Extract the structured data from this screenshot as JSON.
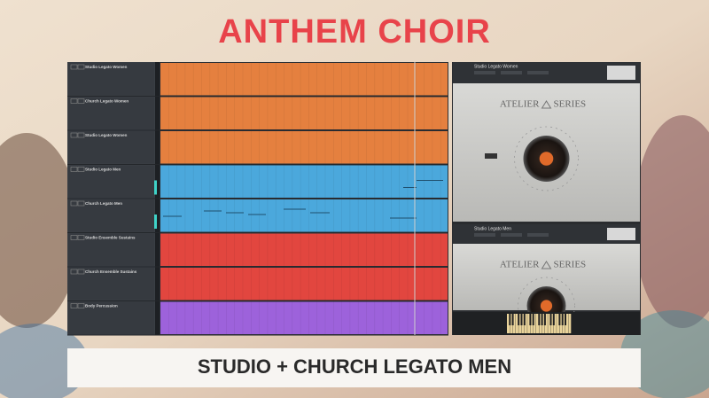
{
  "header": {
    "title": "ANTHEM CHOIR"
  },
  "tracks": [
    {
      "name": "Studio Legato Women",
      "color": "#e5803f"
    },
    {
      "name": "Church Legato Women",
      "color": "#e5803f"
    },
    {
      "name": "Studio Legato Women",
      "color": "#e5803f"
    },
    {
      "name": "Studio Legato Men",
      "color": "#4ba8dc"
    },
    {
      "name": "Church Legato Men",
      "color": "#4ba8dc"
    },
    {
      "name": "Studio Ensemble Sustains",
      "color": "#e2463f"
    },
    {
      "name": "Church Ensemble Sustains",
      "color": "#e2463f"
    },
    {
      "name": "Body Percussion",
      "color": "#9d62db"
    }
  ],
  "plugins": [
    {
      "name": "Studio Legato Women",
      "brand": [
        "ATELIER",
        "SERIES"
      ]
    },
    {
      "name": "Studio Legato Men",
      "brand": [
        "ATELIER",
        "SERIES"
      ]
    }
  ],
  "caption": "STUDIO + CHURCH LEGATO MEN"
}
